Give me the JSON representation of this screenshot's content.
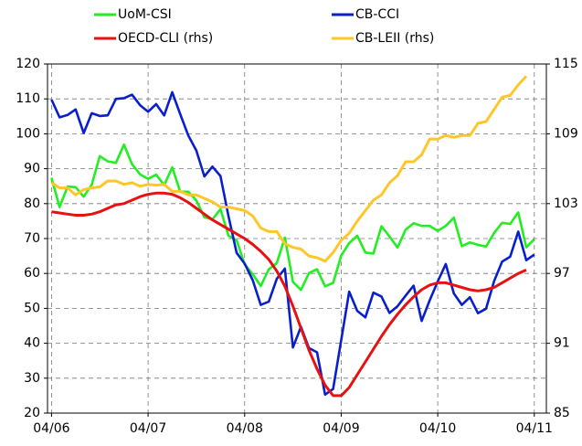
{
  "chart_data": {
    "type": "line",
    "x": [
      0,
      1,
      2,
      3,
      4,
      5,
      6,
      7,
      8,
      9,
      10,
      11,
      12,
      13,
      14,
      15,
      16,
      17,
      18,
      19,
      20,
      21,
      22,
      23,
      24,
      25,
      26,
      27,
      28,
      29,
      30,
      31,
      32,
      33,
      34,
      35,
      36,
      37,
      38,
      39,
      40,
      41,
      42,
      43,
      44,
      45,
      46,
      47,
      48,
      49,
      50,
      51,
      52,
      53,
      54,
      55,
      56,
      57,
      58,
      59,
      60
    ],
    "xlim": [
      -0.5,
      61.5
    ],
    "xticks": [
      {
        "value": 0,
        "label": "04/06"
      },
      {
        "value": 12,
        "label": "04/07"
      },
      {
        "value": 24,
        "label": "04/08"
      },
      {
        "value": 36,
        "label": "04/09"
      },
      {
        "value": 48,
        "label": "04/10"
      },
      {
        "value": 60,
        "label": "04/11"
      }
    ],
    "ylim": [
      20,
      120
    ],
    "yticks": [
      20,
      30,
      40,
      50,
      60,
      70,
      80,
      90,
      100,
      110,
      120
    ],
    "y2lim": [
      85,
      115
    ],
    "y2ticks": [
      85,
      91,
      97,
      103,
      109,
      115
    ],
    "grid": true,
    "series": [
      {
        "name": "UoM-CSI",
        "color": "#22ee22",
        "values": [
          87.4,
          79,
          84.9,
          84.7,
          82,
          85.4,
          93.6,
          92.1,
          91.7,
          96.9,
          91.3,
          88.4,
          87.1,
          88.3,
          85.3,
          90.4,
          83.4,
          83.4,
          80.9,
          76.1,
          75.5,
          78.4,
          70.8,
          69.5,
          62.6,
          59.8,
          56.4,
          61.2,
          63,
          70.3,
          57.6,
          55.3,
          60.1,
          61.2,
          56.3,
          57.3,
          65.1,
          68.7,
          70.8,
          66,
          65.7,
          73.5,
          70.6,
          67.4,
          72.5,
          74.4,
          73.6,
          73.6,
          72.2,
          73.6,
          76,
          67.8,
          68.9,
          68.2,
          67.7,
          71.6,
          74.5,
          74.2,
          77.5,
          67.5,
          69.8
        ]
      },
      {
        "name": "CB-CCI",
        "color": "#0a1fcc",
        "values": [
          109.8,
          104.7,
          105.4,
          107,
          100.2,
          105.9,
          105.1,
          105.3,
          110,
          110.2,
          111.2,
          108.2,
          106.3,
          108.5,
          105.3,
          111.9,
          105.6,
          99.5,
          95.2,
          87.8,
          90.6,
          87.9,
          76.4,
          65.9,
          62.8,
          58.1,
          51,
          51.9,
          58.5,
          61.4,
          38.8,
          44.7,
          38.6,
          37.4,
          25.3,
          26.9,
          40.8,
          54.8,
          49.3,
          47.4,
          54.5,
          53.4,
          48.7,
          50.6,
          53.6,
          56.5,
          46.4,
          52.3,
          57.7,
          62.7,
          54.3,
          51,
          53.2,
          48.6,
          49.9,
          57.8,
          63.4,
          64.8,
          72,
          63.8,
          65.4
        ]
      },
      {
        "name": "OECD-CLI (rhs)",
        "color": "#e81010",
        "axis": "y2",
        "values": [
          102.3,
          102.2,
          102.1,
          102.0,
          102.0,
          102.1,
          102.3,
          102.6,
          102.9,
          103.0,
          103.3,
          103.6,
          103.8,
          103.9,
          103.9,
          103.8,
          103.5,
          103.1,
          102.6,
          102.1,
          101.6,
          101.2,
          100.8,
          100.4,
          100.0,
          99.5,
          98.9,
          98.2,
          97.2,
          95.9,
          94.2,
          92.3,
          90.4,
          88.8,
          87.4,
          86.5,
          86.5,
          87.2,
          88.3,
          89.4,
          90.5,
          91.6,
          92.6,
          93.5,
          94.3,
          95.0,
          95.6,
          96.0,
          96.2,
          96.2,
          96.0,
          95.8,
          95.6,
          95.5,
          95.6,
          95.8,
          96.2,
          96.6,
          97.0,
          97.3,
          null
        ]
      },
      {
        "name": "CB-LEII (rhs)",
        "color": "#ffc62a",
        "axis": "y2",
        "values": [
          104.8,
          104.35,
          104.35,
          103.75,
          104.2,
          104.35,
          104.44,
          104.95,
          104.95,
          104.65,
          104.8,
          104.5,
          104.65,
          104.59,
          104.65,
          104.05,
          104.05,
          103.75,
          103.75,
          103.45,
          103.15,
          102.7,
          102.7,
          102.55,
          102.4,
          101.95,
          100.9,
          100.6,
          100.6,
          99.55,
          99.25,
          99.1,
          98.5,
          98.35,
          98.05,
          98.8,
          99.85,
          100.45,
          101.5,
          102.4,
          103.3,
          103.75,
          104.8,
          105.4,
          106.6,
          106.6,
          107.2,
          108.55,
          108.55,
          108.85,
          108.7,
          108.85,
          108.85,
          109.9,
          110.05,
          111.1,
          112.15,
          112.3,
          113.2,
          113.95,
          null
        ]
      }
    ]
  }
}
